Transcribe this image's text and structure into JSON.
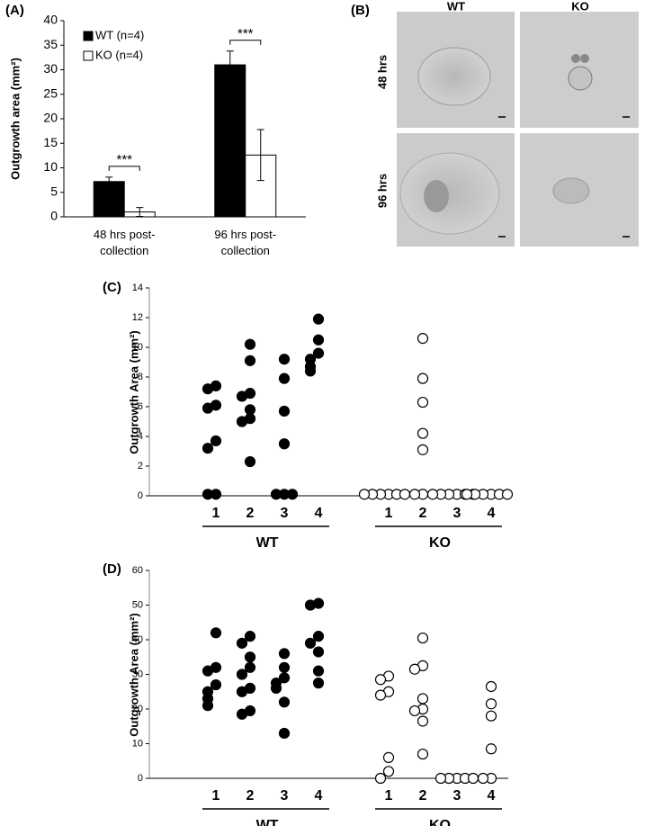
{
  "chart_data": [
    {
      "type": "bar",
      "panel_label": "(A)",
      "ylabel": "Outgrowth area (mm²)",
      "categories": [
        "48 hrs post-collection",
        "96 hrs post-collection"
      ],
      "series": [
        {
          "name": "WT (n=4)",
          "color": "#000000",
          "values": [
            7.2,
            31.0
          ],
          "errors": [
            0.9,
            2.8
          ]
        },
        {
          "name": "KO (n=4)",
          "color": "#ffffff",
          "values": [
            1.0,
            12.6
          ],
          "errors": [
            0.9,
            5.2
          ]
        }
      ],
      "annotations": [
        "***",
        "***"
      ],
      "ylim": [
        0,
        40
      ],
      "yticks": [
        0,
        5,
        10,
        15,
        20,
        25,
        30,
        35,
        40
      ],
      "legend": "upper-left"
    },
    {
      "type": "strip",
      "panel_label": "(C)",
      "ylabel": "Outgrowth Area (mm²)",
      "categories": [
        "1",
        "2",
        "3",
        "4"
      ],
      "series": [
        {
          "name": "WT",
          "color": "#000000",
          "values": [
            [
              7.4,
              7.2,
              6.1,
              5.9,
              3.7,
              3.2,
              0.1,
              0.1
            ],
            [
              10.2,
              9.1,
              6.9,
              6.7,
              5.8,
              5.2,
              5.0,
              2.3
            ],
            [
              9.2,
              7.9,
              5.7,
              3.5,
              0.1,
              0.1,
              0.1
            ],
            [
              11.9,
              10.5,
              9.6,
              9.2,
              8.7,
              8.4
            ]
          ]
        },
        {
          "name": "KO",
          "color": "#ffffff",
          "values": [
            [
              0.1,
              0.1,
              0.1,
              0.1,
              0.1,
              0.1
            ],
            [
              10.6,
              7.9,
              6.3,
              4.2,
              3.1,
              0.1,
              0.1
            ],
            [
              0.1,
              0.1,
              0.1,
              0.1,
              0.1,
              0.1
            ],
            [
              0.1,
              0.1,
              0.1,
              0.1,
              0.1,
              0.1
            ]
          ]
        }
      ],
      "ylim": [
        0,
        14
      ],
      "yticks": [
        0,
        2,
        4,
        6,
        8,
        10,
        12,
        14
      ]
    },
    {
      "type": "strip",
      "panel_label": "(D)",
      "ylabel": "Outgrowth Area (mm²)",
      "categories": [
        "1",
        "2",
        "3",
        "4"
      ],
      "series": [
        {
          "name": "WT",
          "color": "#000000",
          "values": [
            [
              42,
              32,
              31,
              27,
              25,
              23,
              21
            ],
            [
              41,
              39,
              35,
              32,
              30,
              26,
              25,
              19.5,
              18.5
            ],
            [
              36,
              32,
              29,
              27.5,
              26,
              22,
              13
            ],
            [
              50.5,
              50,
              41,
              39,
              36.5,
              31,
              27.5
            ]
          ]
        },
        {
          "name": "KO",
          "color": "#ffffff",
          "values": [
            [
              29.5,
              28.5,
              25,
              24,
              6,
              2,
              0
            ],
            [
              40.5,
              32.5,
              31.5,
              23,
              20,
              19.5,
              16.5,
              7
            ],
            [
              0,
              0,
              0,
              0,
              0
            ],
            [
              26.5,
              21.5,
              18,
              8.5,
              0,
              0
            ]
          ]
        }
      ],
      "ylim": [
        0,
        60
      ],
      "yticks": [
        0,
        10,
        20,
        30,
        40,
        50,
        60
      ]
    }
  ],
  "image_panel": {
    "panel_label": "(B)",
    "columns": [
      "WT",
      "KO"
    ],
    "rows": [
      "48 hrs",
      "96 hrs"
    ]
  }
}
